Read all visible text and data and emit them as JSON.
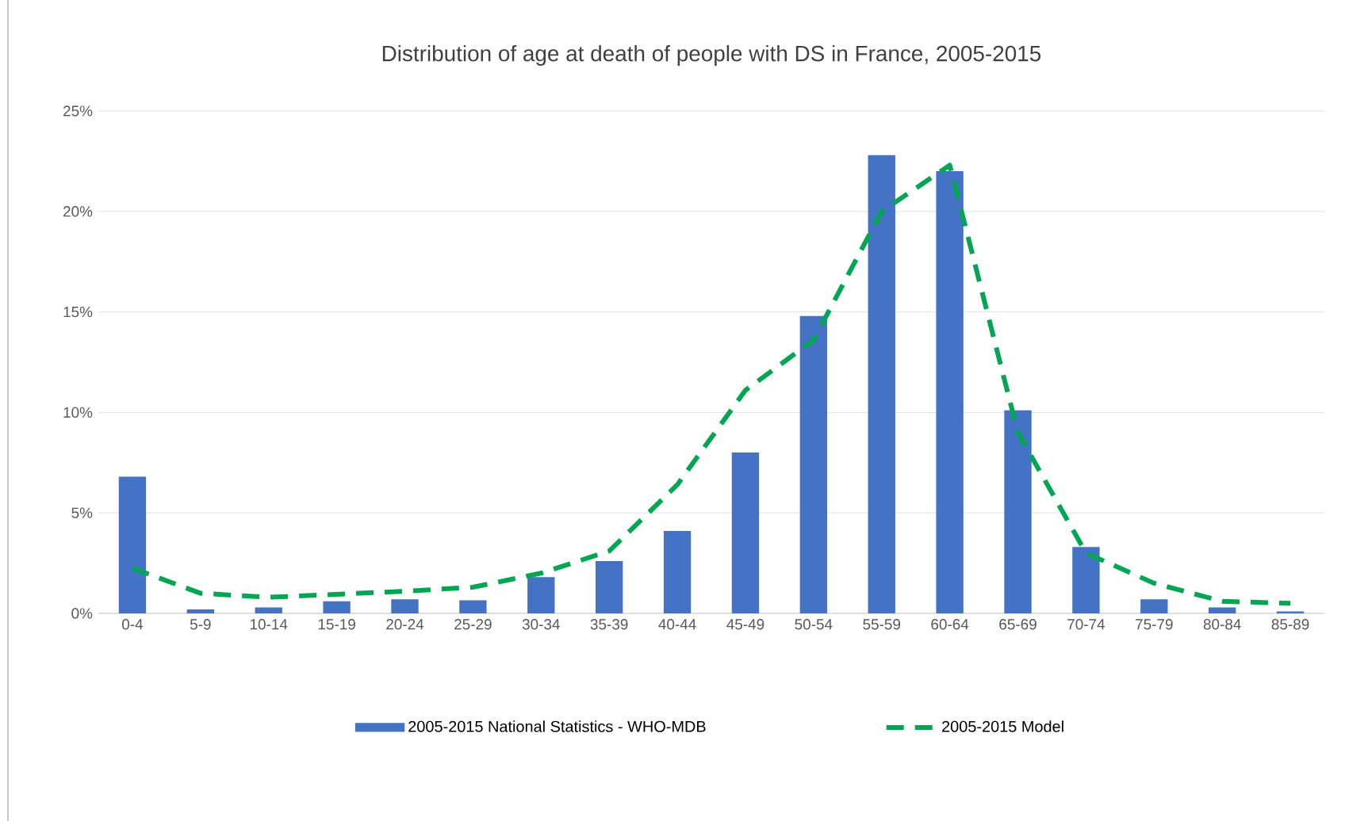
{
  "chart_data": {
    "type": "bar",
    "title": "Distribution of age at death of people with DS in France, 2005-2015",
    "categories": [
      "0-4",
      "5-9",
      "10-14",
      "15-19",
      "20-24",
      "25-29",
      "30-34",
      "35-39",
      "40-44",
      "45-49",
      "50-54",
      "55-59",
      "60-64",
      "65-69",
      "70-74",
      "75-79",
      "80-84",
      "85-89"
    ],
    "series": [
      {
        "name": "2005-2015 National Statistics - WHO-MDB",
        "color": "#4472c4",
        "values": [
          6.8,
          0.2,
          0.3,
          0.6,
          0.7,
          0.65,
          1.8,
          2.6,
          4.1,
          8.0,
          14.8,
          22.8,
          22.0,
          10.1,
          3.3,
          0.7,
          0.3,
          0.1
        ]
      },
      {
        "name": "2005-2015 Model",
        "type": "line",
        "color": "#00a651",
        "line_style": "dashed",
        "values": [
          2.25,
          1.0,
          0.8,
          0.95,
          1.1,
          1.3,
          2.0,
          3.1,
          6.4,
          11.1,
          13.6,
          20.0,
          22.3,
          9.0,
          3.0,
          1.5,
          0.6,
          0.5
        ]
      }
    ],
    "ylim": [
      0,
      25
    ],
    "yticks": [
      {
        "value": 0,
        "label": "0%"
      },
      {
        "value": 5,
        "label": "5%"
      },
      {
        "value": 10,
        "label": "10%"
      },
      {
        "value": 15,
        "label": "15%"
      },
      {
        "value": 20,
        "label": "20%"
      },
      {
        "value": 25,
        "label": "25%"
      }
    ],
    "grid": "y",
    "legend": "bottom"
  }
}
